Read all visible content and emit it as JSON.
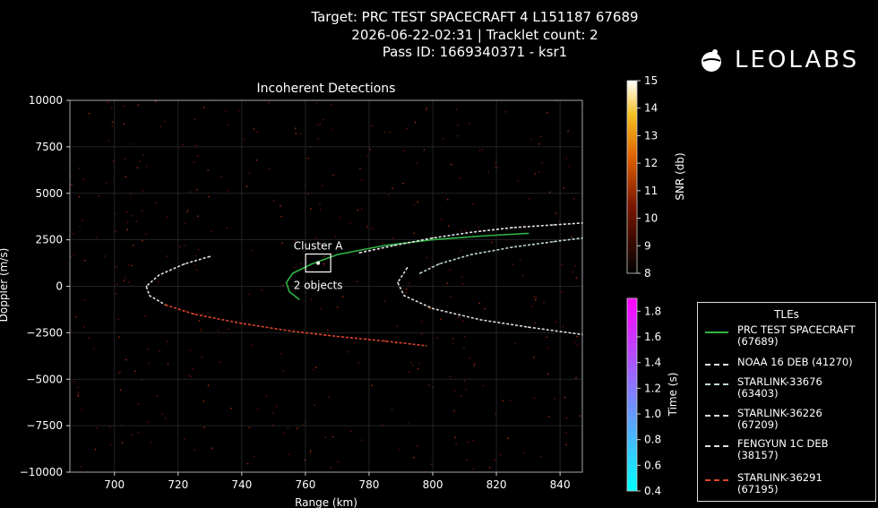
{
  "header": {
    "line1": "Target: PRC TEST SPACECRAFT 4 L151187 67689",
    "line2": "2026-06-22-02:31 | Tracklet count: 2",
    "line3": "Pass ID: 1669340371 - ksr1"
  },
  "logo": {
    "text": "LEOLABS"
  },
  "chart_data": {
    "type": "scatter",
    "title": "Incoherent Detections",
    "xlabel": "Range (km)",
    "ylabel": "Doppler (m/s)",
    "xlim": [
      686,
      847
    ],
    "ylim": [
      -10000,
      10000
    ],
    "xticks": [
      "700",
      "720",
      "740",
      "760",
      "780",
      "800",
      "820",
      "840"
    ],
    "yticks": [
      "10000",
      "7500",
      "5000",
      "2500",
      "0",
      "−2500",
      "−5000",
      "−7500",
      "−10000"
    ],
    "grid": true,
    "annotation": {
      "label": "Cluster A",
      "sublabel": "2 objects",
      "x": 764,
      "y": 1250
    },
    "snr_colorbar": {
      "label": "SNR (db)",
      "range": [
        8,
        15
      ],
      "ticks": [
        "15",
        "14",
        "13",
        "12",
        "11",
        "10",
        "9",
        "8"
      ]
    },
    "time_colorbar": {
      "label": "Time (s)",
      "range": [
        0.4,
        1.9
      ],
      "ticks": [
        "1.8",
        "1.6",
        "1.4",
        "1.2",
        "1.0",
        "0.8",
        "0.6",
        "0.4"
      ]
    },
    "legend": {
      "title": "TLEs",
      "placement": "right"
    },
    "series": [
      {
        "name": "PRC TEST SPACECRAFT\n(67689)",
        "style": "solid",
        "color": "#2fb344",
        "x": [
          758,
          755,
          754,
          756,
          762,
          770,
          785,
          800,
          815,
          830
        ],
        "y": [
          -700,
          -300,
          200,
          700,
          1200,
          1700,
          2200,
          2500,
          2700,
          2850
        ]
      },
      {
        "name": "NOAA 16 DEB (41270)",
        "style": "dashed",
        "color": "#e8e8e8",
        "x": [
          777,
          788,
          800,
          812,
          825,
          838,
          847
        ],
        "y": [
          1800,
          2200,
          2600,
          2900,
          3150,
          3300,
          3400
        ]
      },
      {
        "name": "STARLINK-33676\n(63403)",
        "style": "dashed",
        "color": "#c0d8d8",
        "x": [
          796,
          802,
          812,
          825,
          838,
          847
        ],
        "y": [
          700,
          1200,
          1700,
          2100,
          2400,
          2600
        ]
      },
      {
        "name": "STARLINK-36226\n(67209)",
        "style": "dashed",
        "color": "#dcdcdc",
        "x": [
          792,
          789,
          791,
          800,
          815,
          830,
          847
        ],
        "y": [
          1000,
          200,
          -500,
          -1200,
          -1800,
          -2200,
          -2600
        ]
      },
      {
        "name": "FENGYUN 1C DEB\n(38157)",
        "style": "dashed",
        "color": "#e0e0e0",
        "x": [
          730,
          722,
          714,
          710,
          711,
          716
        ],
        "y": [
          1600,
          1200,
          600,
          0,
          -500,
          -1000
        ]
      },
      {
        "name": "STARLINK-36291\n(67195)",
        "style": "dashed",
        "color": "#e0452c",
        "x": [
          716,
          725,
          740,
          755,
          770,
          785,
          798
        ],
        "y": [
          -1000,
          -1500,
          -2000,
          -2400,
          -2700,
          -2950,
          -3200
        ]
      }
    ]
  }
}
